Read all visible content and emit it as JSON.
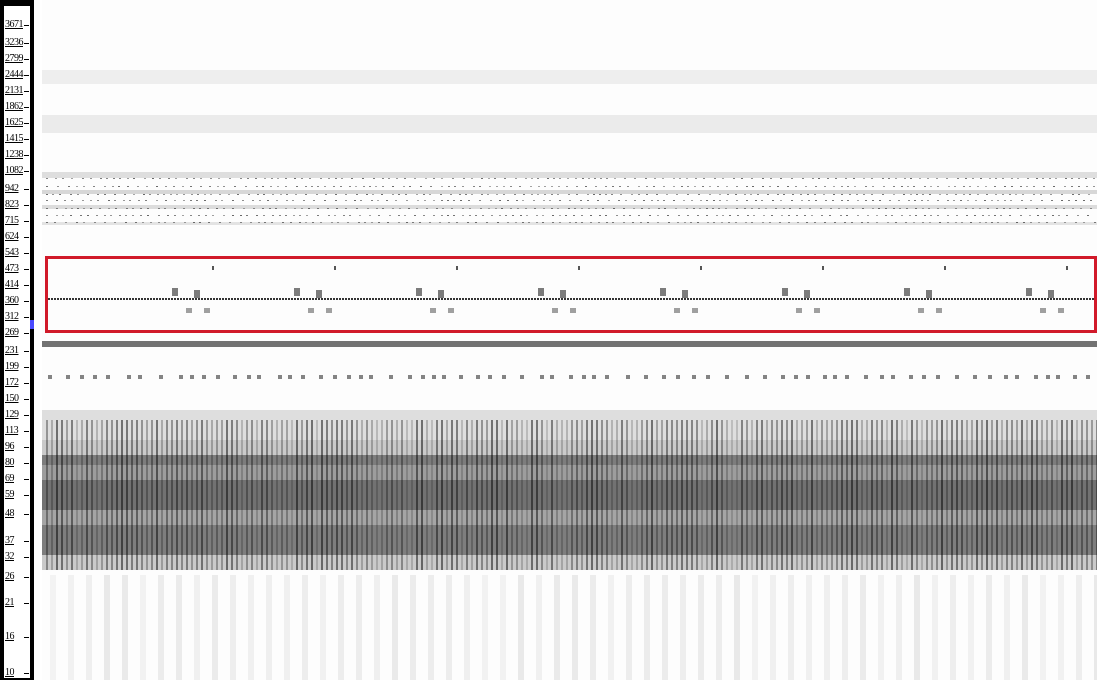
{
  "ruler": {
    "tick_labels": [
      "3671",
      "3236",
      "2799",
      "2444",
      "2131",
      "1862",
      "1625",
      "1415",
      "1238",
      "1082",
      "942",
      "823",
      "715",
      "624",
      "543",
      "473",
      "414",
      "360",
      "312",
      "269",
      "231",
      "199",
      "172",
      "150",
      "129",
      "113",
      "96",
      "80",
      "69",
      "59",
      "48",
      "37",
      "32",
      "26",
      "21",
      "16",
      "10"
    ],
    "marker_color": "#4a4aff"
  },
  "spectrogram": {
    "palette": "grayscale",
    "highlight": {
      "color": "#d11a2a",
      "covers_ticks": [
        "414",
        "360",
        "312",
        "269"
      ]
    }
  }
}
